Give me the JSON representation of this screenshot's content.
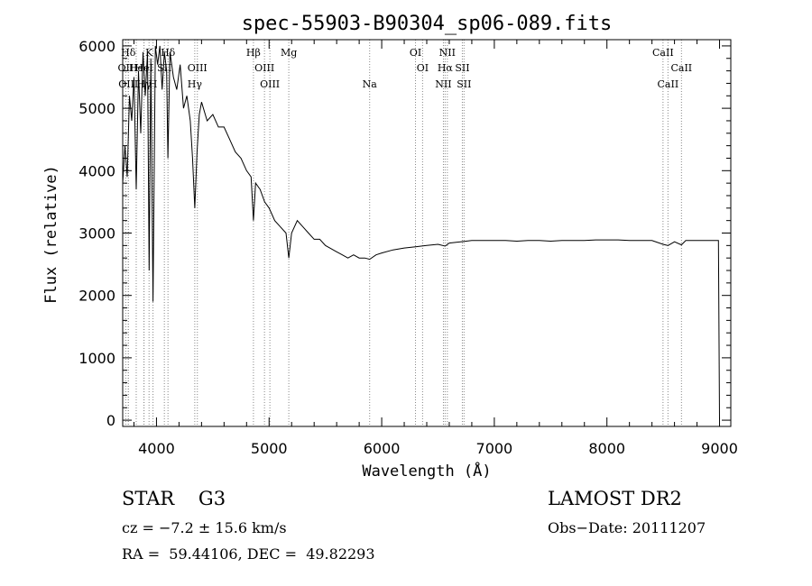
{
  "chart_data": {
    "type": "line",
    "title": "spec-55903-B90304_sp06-089.fits",
    "xlabel": "Wavelength (Å)",
    "ylabel": "Flux (relative)",
    "xlim": [
      3700,
      9100
    ],
    "ylim": [
      -100,
      6100
    ],
    "xticks": [
      4000,
      5000,
      6000,
      7000,
      8000,
      9000
    ],
    "yticks": [
      0,
      1000,
      2000,
      3000,
      4000,
      5000,
      6000
    ],
    "grid": false,
    "lines": [
      {
        "label": "Hδ",
        "x": 3750,
        "row": 0
      },
      {
        "label": "OII",
        "x": 3727,
        "row": 1
      },
      {
        "label": "OIII",
        "x": 3750,
        "row": 2
      },
      {
        "label": "K",
        "x": 3934,
        "row": 0
      },
      {
        "label": "H",
        "x": 3969,
        "row": 2
      },
      {
        "label": "He",
        "x": 3820,
        "row": 1
      },
      {
        "label": "Hγ",
        "x": 3889,
        "row": 2
      },
      {
        "label": "HeI",
        "x": 3889,
        "row": 1
      },
      {
        "label": "SII",
        "x": 4070,
        "row": 1
      },
      {
        "label": "Hδ",
        "x": 4102,
        "row": 0
      },
      {
        "label": "OIII",
        "x": 4363,
        "row": 1
      },
      {
        "label": "Hγ",
        "x": 4340,
        "row": 2
      },
      {
        "label": "Hβ",
        "x": 4861,
        "row": 0
      },
      {
        "label": "OIII",
        "x": 4959,
        "row": 1
      },
      {
        "label": "OIII",
        "x": 5007,
        "row": 2
      },
      {
        "label": "Mg",
        "x": 5175,
        "row": 0
      },
      {
        "label": "Na",
        "x": 5893,
        "row": 2
      },
      {
        "label": "OI",
        "x": 6300,
        "row": 0
      },
      {
        "label": "OI",
        "x": 6363,
        "row": 1
      },
      {
        "label": "NII",
        "x": 6548,
        "row": 2
      },
      {
        "label": "NII",
        "x": 6583,
        "row": 0
      },
      {
        "label": "Hα",
        "x": 6563,
        "row": 1
      },
      {
        "label": "SII",
        "x": 6716,
        "row": 1
      },
      {
        "label": "SII",
        "x": 6731,
        "row": 2
      },
      {
        "label": "CaII",
        "x": 8498,
        "row": 0
      },
      {
        "label": "CaII",
        "x": 8542,
        "row": 2
      },
      {
        "label": "CaII",
        "x": 8662,
        "row": 1
      }
    ],
    "series": [
      {
        "x": [
          3700,
          3720,
          3740,
          3760,
          3780,
          3800,
          3820,
          3840,
          3860,
          3880,
          3900,
          3920,
          3935,
          3950,
          3969,
          3990,
          4010,
          4030,
          4050,
          4070,
          4090,
          4101,
          4120,
          4150,
          4180,
          4210,
          4240,
          4270,
          4300,
          4320,
          4340,
          4360,
          4380,
          4400,
          4450,
          4500,
          4550,
          4600,
          4650,
          4700,
          4750,
          4800,
          4840,
          4861,
          4880,
          4920,
          4960,
          5000,
          5050,
          5100,
          5150,
          5175,
          5200,
          5250,
          5300,
          5350,
          5400,
          5450,
          5500,
          5550,
          5600,
          5650,
          5700,
          5750,
          5800,
          5850,
          5893,
          5950,
          6000,
          6100,
          6200,
          6300,
          6400,
          6500,
          6563,
          6600,
          6700,
          6800,
          6900,
          7000,
          7100,
          7200,
          7300,
          7400,
          7500,
          7600,
          7700,
          7800,
          7900,
          8000,
          8100,
          8200,
          8300,
          8400,
          8498,
          8542,
          8600,
          8662,
          8700,
          8800,
          8900,
          8990,
          9000
        ],
        "y": [
          3800,
          4400,
          3900,
          5200,
          4800,
          5500,
          3700,
          5600,
          4600,
          5900,
          5200,
          5900,
          2400,
          5800,
          1900,
          6000,
          5700,
          6000,
          5300,
          5900,
          5600,
          4200,
          5900,
          5500,
          5300,
          5700,
          5000,
          5200,
          4800,
          4200,
          3400,
          4300,
          4900,
          5100,
          4800,
          4900,
          4700,
          4700,
          4500,
          4300,
          4200,
          4000,
          3900,
          3200,
          3800,
          3700,
          3500,
          3400,
          3200,
          3100,
          3000,
          2600,
          3000,
          3200,
          3100,
          3000,
          2900,
          2900,
          2800,
          2750,
          2700,
          2650,
          2600,
          2650,
          2600,
          2600,
          2580,
          2650,
          2680,
          2730,
          2760,
          2780,
          2800,
          2820,
          2790,
          2840,
          2860,
          2880,
          2880,
          2880,
          2880,
          2870,
          2880,
          2880,
          2870,
          2880,
          2880,
          2880,
          2890,
          2890,
          2890,
          2880,
          2880,
          2880,
          2820,
          2800,
          2860,
          2810,
          2880,
          2880,
          2880,
          2880,
          0
        ]
      }
    ]
  },
  "info": {
    "class_line": "STAR    G3",
    "survey": "LAMOST DR2",
    "cz_line": "cz = −7.2 ± 15.6 km/s",
    "obs_date": "Obs−Date: 20111207",
    "radec_line": "RA =  59.44106, DEC =  49.82293"
  }
}
